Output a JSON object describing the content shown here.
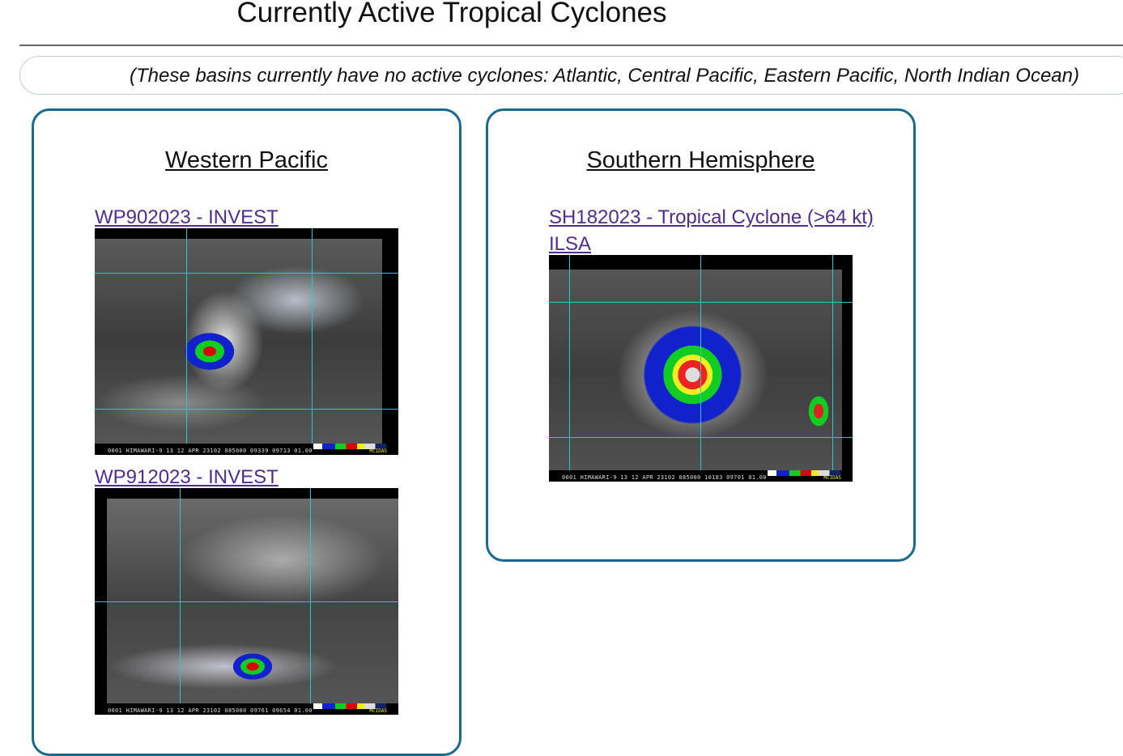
{
  "page": {
    "title": "Currently Active Tropical Cyclones"
  },
  "notice": {
    "text": "(These basins currently have no active cyclones: Atlantic, Central Pacific, Eastern Pacific, North Indian Ocean)"
  },
  "basins": [
    {
      "name": "Western Pacific",
      "storms": [
        {
          "link": "WP902023 - INVEST",
          "image_caption": "0001 HIMAWARI-9 13 12 APR 23102 085000 09339 09713 01.00",
          "image_brand": "McIDAS"
        },
        {
          "link": "WP912023 - INVEST",
          "image_caption": "0001 HIMAWARI-9 13 12 APR 23102 085000 09761 09654 01.00",
          "image_brand": "McIDAS"
        }
      ]
    },
    {
      "name": "Southern Hemisphere",
      "storms": [
        {
          "link": "SH182023 - Tropical Cyclone (>64 kt)",
          "link_line2": "ILSA",
          "image_caption": "0001 HIMAWARI-9 13 12 APR 23102 085000 10183 09701 01.00",
          "image_brand": "McIDAS"
        }
      ]
    }
  ],
  "colors": {
    "card_border": "#19698f",
    "link": "#4f2d8f"
  }
}
